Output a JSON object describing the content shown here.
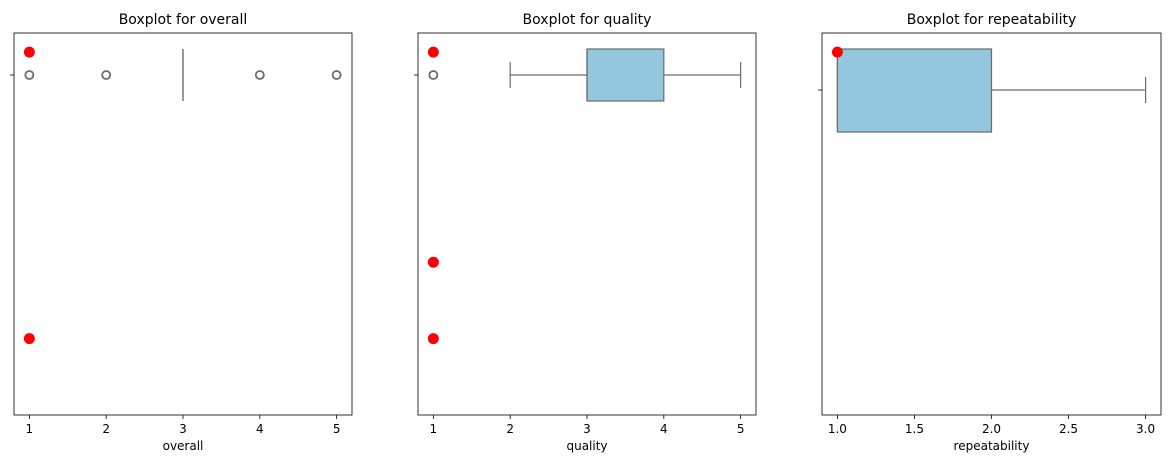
{
  "chart_data": [
    {
      "type": "boxplot",
      "title": "Boxplot for overall",
      "xlabel": "overall",
      "xlim": [
        0.8,
        5.2
      ],
      "xticks": [
        1,
        2,
        3,
        4,
        5
      ],
      "xtick_labels": [
        "1",
        "2",
        "3",
        "4",
        "5"
      ],
      "box": {
        "q1": 3,
        "median": 3,
        "q3": 3,
        "whisker_low": 3,
        "whisker_high": 3
      },
      "outliers": [
        1,
        2,
        4,
        5
      ],
      "highlight_points": [
        {
          "x": 1,
          "y": 0.2
        },
        {
          "x": 1,
          "y": 0.95
        }
      ]
    },
    {
      "type": "boxplot",
      "title": "Boxplot for quality",
      "xlabel": "quality",
      "xlim": [
        0.8,
        5.2
      ],
      "xticks": [
        1,
        2,
        3,
        4,
        5
      ],
      "xtick_labels": [
        "1",
        "2",
        "3",
        "4",
        "5"
      ],
      "box": {
        "q1": 3,
        "median": 3,
        "q3": 4,
        "whisker_low": 2,
        "whisker_high": 5
      },
      "outliers": [
        1
      ],
      "highlight_points": [
        {
          "x": 1,
          "y": 0.2
        },
        {
          "x": 1,
          "y": 0.4
        },
        {
          "x": 1,
          "y": 0.95
        }
      ]
    },
    {
      "type": "boxplot",
      "title": "Boxplot for repeatability",
      "xlabel": "repeatability",
      "xlim": [
        0.9,
        3.1
      ],
      "xticks": [
        1.0,
        1.5,
        2.0,
        2.5,
        3.0
      ],
      "xtick_labels": [
        "1.0",
        "1.5",
        "2.0",
        "2.5",
        "3.0"
      ],
      "box": {
        "q1": 1,
        "median": 1,
        "q3": 2,
        "whisker_low": 1,
        "whisker_high": 3
      },
      "outliers": [],
      "highlight_points": [
        {
          "x": 1,
          "y": 0.95
        }
      ]
    }
  ],
  "colors": {
    "box_fill": "#92c7de",
    "box_edge": "#6b6b6b",
    "highlight": "#ff0000"
  }
}
